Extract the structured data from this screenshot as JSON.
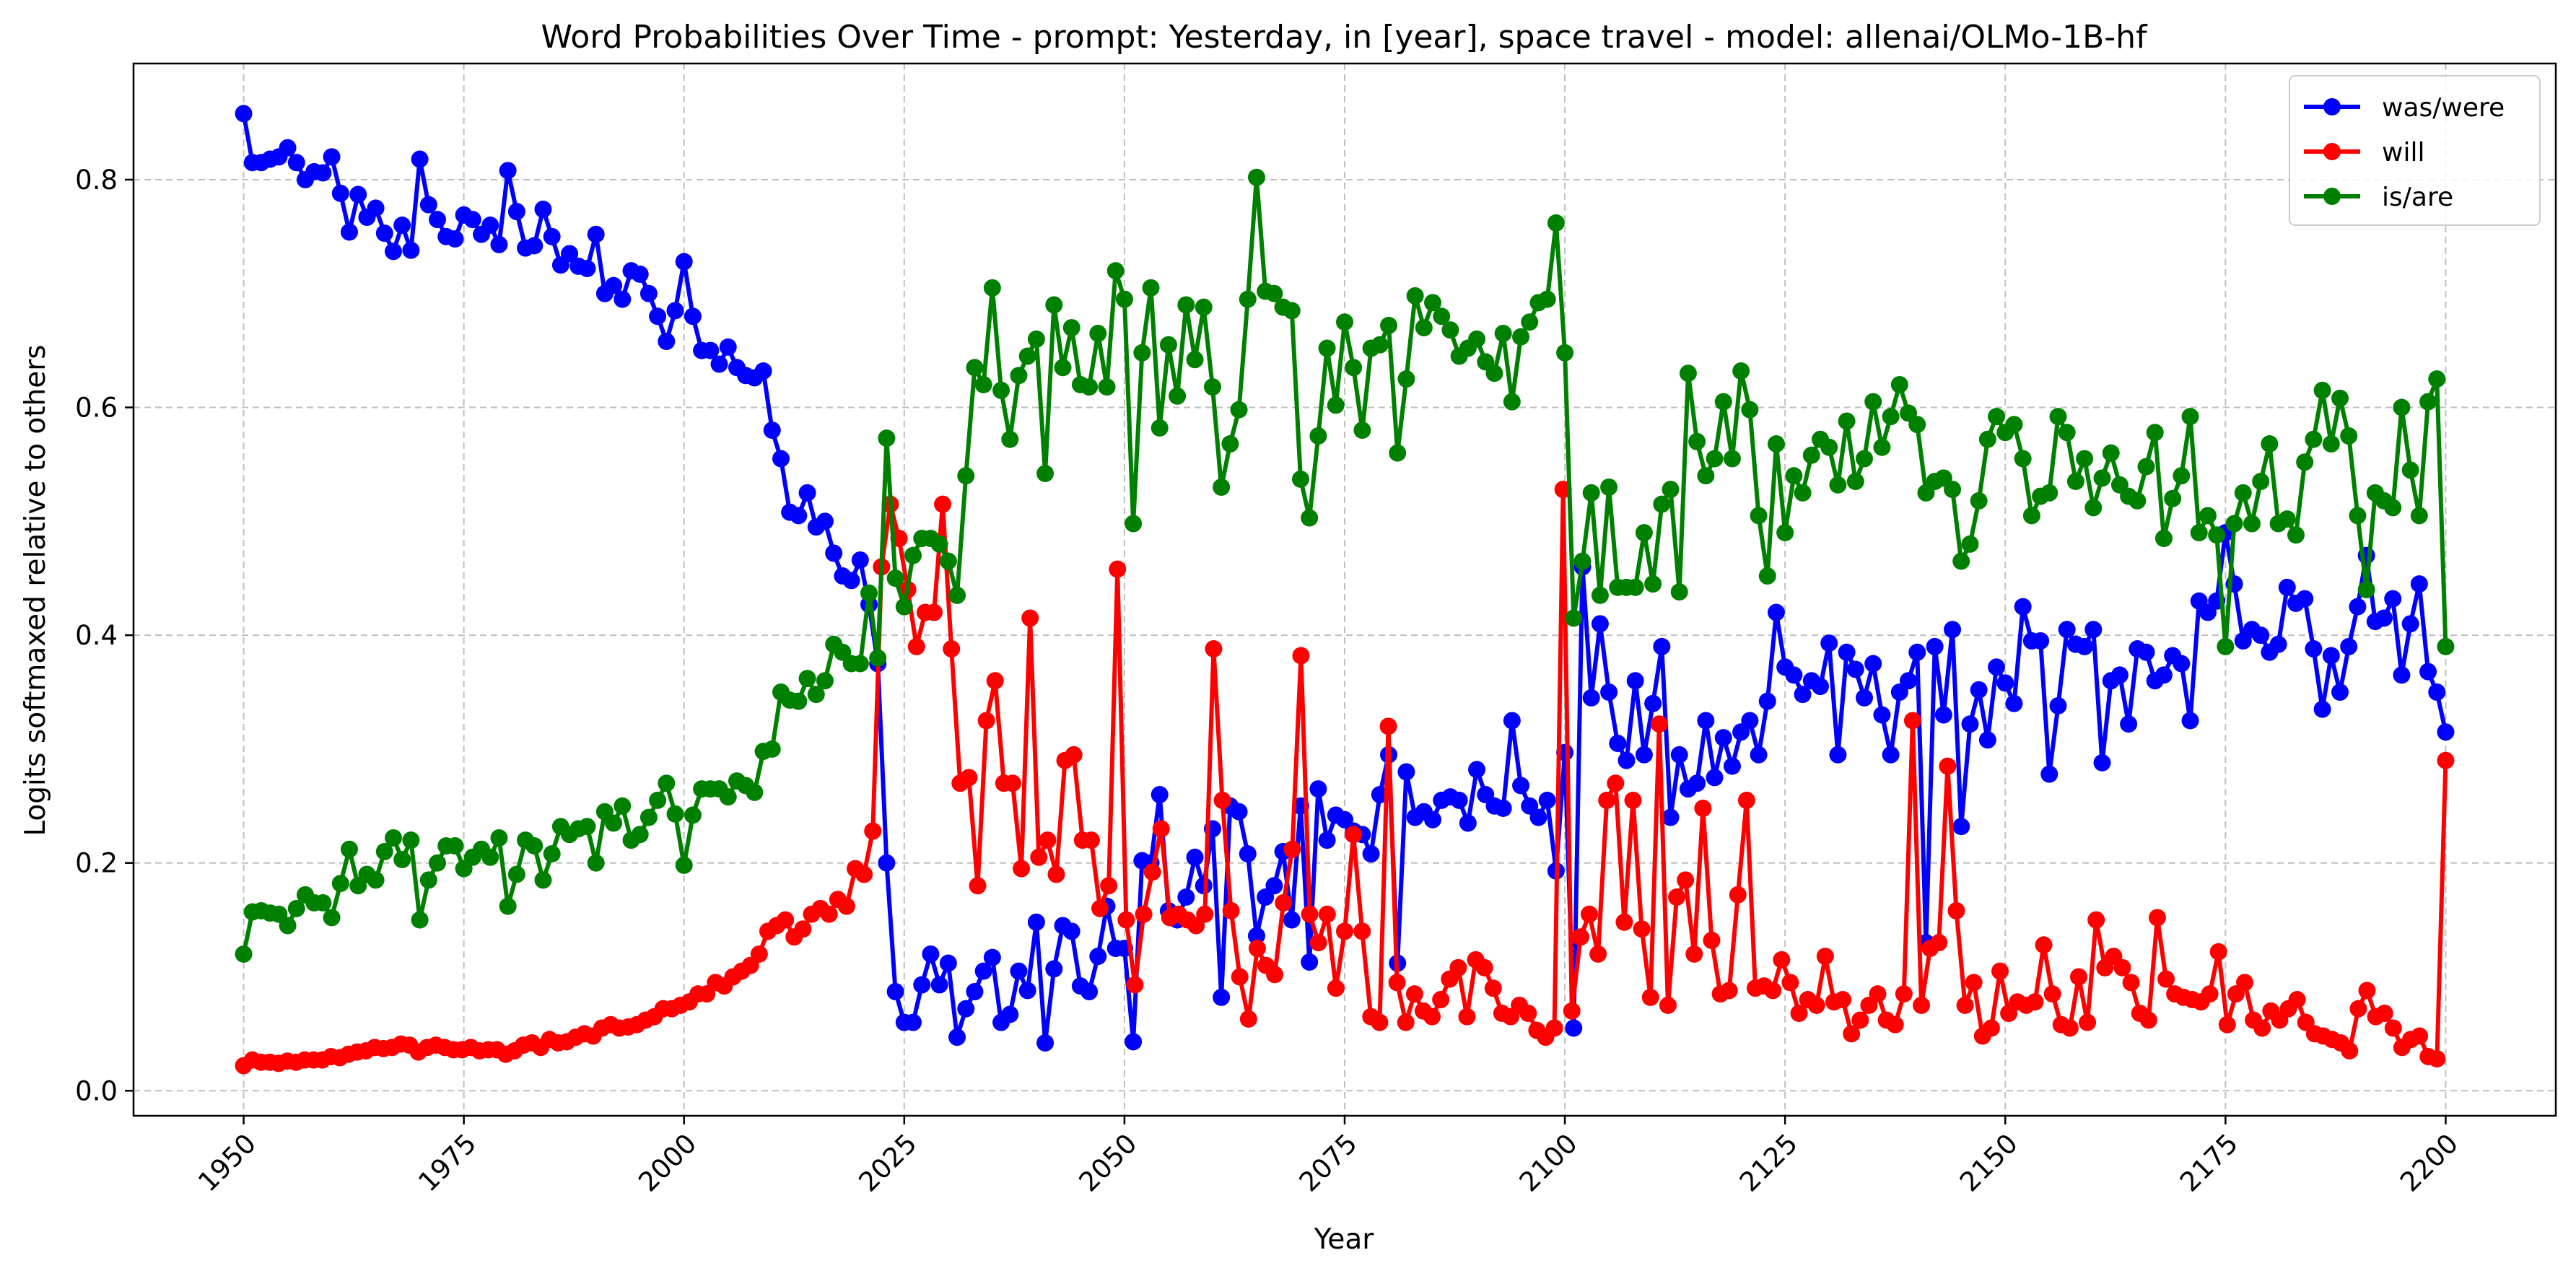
{
  "chart_data": {
    "type": "line",
    "title": "Word Probabilities Over Time - prompt: Yesterday, in [year], space travel - model: allenai/OLMo-1B-hf",
    "xlabel": "Year",
    "ylabel": "Logits softmaxed relative to others",
    "xlim": [
      1937.5,
      2212.5
    ],
    "ylim": [
      -0.022,
      0.902
    ],
    "xticks": [
      1950,
      1975,
      2000,
      2025,
      2050,
      2075,
      2100,
      2125,
      2150,
      2175,
      2200
    ],
    "yticks": [
      0.0,
      0.2,
      0.4,
      0.6,
      0.8
    ],
    "ytick_labels": [
      "0.0",
      "0.2",
      "0.4",
      "0.6",
      "0.8"
    ],
    "grid": true,
    "legend_position": "top-right",
    "x_start": 1950,
    "x_end": 2200,
    "series": [
      {
        "name": "was/were",
        "color": "#0000ff",
        "values": [
          0.858,
          0.815,
          0.815,
          0.818,
          0.82,
          0.828,
          0.815,
          0.8,
          0.807,
          0.806,
          0.82,
          0.788,
          0.754,
          0.787,
          0.767,
          0.775,
          0.753,
          0.737,
          0.76,
          0.738,
          0.818,
          0.778,
          0.765,
          0.75,
          0.748,
          0.769,
          0.765,
          0.752,
          0.76,
          0.743,
          0.808,
          0.772,
          0.74,
          0.742,
          0.774,
          0.75,
          0.725,
          0.735,
          0.724,
          0.722,
          0.752,
          0.7,
          0.707,
          0.695,
          0.72,
          0.717,
          0.7,
          0.68,
          0.658,
          0.685,
          0.728,
          0.68,
          0.65,
          0.65,
          0.638,
          0.653,
          0.635,
          0.628,
          0.626,
          0.632,
          0.58,
          0.555,
          0.508,
          0.505,
          0.525,
          0.495,
          0.5,
          0.472,
          0.452,
          0.448,
          0.466,
          0.427,
          0.375,
          0.2,
          0.087,
          0.06,
          0.06,
          0.093,
          0.12,
          0.093,
          0.112,
          0.047,
          0.072,
          0.087,
          0.105,
          0.117,
          0.06,
          0.067,
          0.105,
          0.088,
          0.148,
          0.042,
          0.107,
          0.145,
          0.14,
          0.092,
          0.087,
          0.118,
          0.162,
          0.125,
          0.125,
          0.043,
          0.202,
          0.2,
          0.26,
          0.158,
          0.15,
          0.17,
          0.205,
          0.18,
          0.23,
          0.082,
          0.25,
          0.245,
          0.208,
          0.136,
          0.17,
          0.18,
          0.21,
          0.15,
          0.25,
          0.113,
          0.265,
          0.22,
          0.242,
          0.238,
          0.228,
          0.225,
          0.208,
          0.26,
          0.295,
          0.112,
          0.28,
          0.24,
          0.245,
          0.238,
          0.255,
          0.258,
          0.255,
          0.235,
          0.282,
          0.26,
          0.25,
          0.248,
          0.325,
          0.268,
          0.25,
          0.24,
          0.255,
          0.193,
          0.297,
          0.055,
          0.46,
          0.345,
          0.41,
          0.35,
          0.305,
          0.29,
          0.36,
          0.295,
          0.34,
          0.39,
          0.24,
          0.295,
          0.265,
          0.27,
          0.325,
          0.275,
          0.31,
          0.285,
          0.315,
          0.325,
          0.295,
          0.342,
          0.42,
          0.372,
          0.365,
          0.348,
          0.36,
          0.355,
          0.393,
          0.295,
          0.385,
          0.37,
          0.345,
          0.375,
          0.33,
          0.295,
          0.35,
          0.36,
          0.385,
          0.13,
          0.39,
          0.33,
          0.405,
          0.232,
          0.322,
          0.352,
          0.308,
          0.372,
          0.358,
          0.34,
          0.425,
          0.395,
          0.395,
          0.278,
          0.338,
          0.405,
          0.392,
          0.39,
          0.405,
          0.288,
          0.36,
          0.365,
          0.322,
          0.388,
          0.385,
          0.36,
          0.365,
          0.382,
          0.375,
          0.325,
          0.43,
          0.42,
          0.43,
          0.49,
          0.445,
          0.395,
          0.405,
          0.4,
          0.385,
          0.392,
          0.442,
          0.428,
          0.432,
          0.388,
          0.335,
          0.382,
          0.35,
          0.39,
          0.425,
          0.47,
          0.412,
          0.415,
          0.432,
          0.365,
          0.41,
          0.445,
          0.368,
          0.35,
          0.315
        ]
      },
      {
        "name": "will",
        "color": "#ff0000",
        "values": [
          0.022,
          0.027,
          0.025,
          0.025,
          0.024,
          0.026,
          0.025,
          0.027,
          0.027,
          0.027,
          0.03,
          0.029,
          0.032,
          0.034,
          0.035,
          0.038,
          0.037,
          0.038,
          0.041,
          0.04,
          0.034,
          0.038,
          0.04,
          0.038,
          0.036,
          0.036,
          0.038,
          0.035,
          0.036,
          0.036,
          0.032,
          0.035,
          0.04,
          0.042,
          0.038,
          0.045,
          0.042,
          0.043,
          0.047,
          0.05,
          0.048,
          0.055,
          0.058,
          0.055,
          0.056,
          0.058,
          0.062,
          0.065,
          0.072,
          0.072,
          0.075,
          0.078,
          0.085,
          0.085,
          0.095,
          0.092,
          0.1,
          0.105,
          0.11,
          0.12,
          0.14,
          0.145,
          0.15,
          0.135,
          0.142,
          0.155,
          0.16,
          0.155,
          0.168,
          0.162,
          0.195,
          0.19,
          0.228,
          0.46,
          0.515,
          0.485,
          0.44,
          0.39,
          0.42,
          0.42,
          0.515,
          0.388,
          0.27,
          0.275,
          0.18,
          0.325,
          0.36,
          0.27,
          0.27,
          0.195,
          0.415,
          0.205,
          0.22,
          0.19,
          0.29,
          0.295,
          0.22,
          0.22,
          0.16,
          0.18,
          0.458,
          0.15,
          0.093,
          0.155,
          0.192,
          0.23,
          0.152,
          0.155,
          0.15,
          0.145,
          0.155,
          0.388,
          0.255,
          0.158,
          0.1,
          0.063,
          0.125,
          0.11,
          0.102,
          0.165,
          0.212,
          0.382,
          0.155,
          0.13,
          0.155,
          0.09,
          0.14,
          0.225,
          0.14,
          0.065,
          0.06,
          0.32,
          0.095,
          0.06,
          0.085,
          0.07,
          0.065,
          0.08,
          0.098,
          0.108,
          0.065,
          0.115,
          0.108,
          0.09,
          0.068,
          0.065,
          0.075,
          0.068,
          0.053,
          0.047,
          0.055,
          0.528,
          0.07,
          0.135,
          0.155,
          0.12,
          0.255,
          0.27,
          0.148,
          0.255,
          0.142,
          0.082,
          0.322,
          0.075,
          0.17,
          0.185,
          0.12,
          0.248,
          0.132,
          0.085,
          0.088,
          0.172,
          0.255,
          0.09,
          0.092,
          0.088,
          0.115,
          0.095,
          0.068,
          0.08,
          0.075,
          0.118,
          0.078,
          0.08,
          0.05,
          0.062,
          0.075,
          0.085,
          0.062,
          0.058,
          0.085,
          0.325,
          0.075,
          0.125,
          0.13,
          0.285,
          0.158,
          0.075,
          0.095,
          0.048,
          0.055,
          0.105,
          0.068,
          0.078,
          0.075,
          0.078,
          0.128,
          0.085,
          0.058,
          0.055,
          0.1,
          0.06,
          0.15,
          0.108,
          0.118,
          0.108,
          0.095,
          0.068,
          0.062,
          0.152,
          0.098,
          0.085,
          0.082,
          0.08,
          0.078,
          0.085,
          0.122,
          0.058,
          0.085,
          0.095,
          0.062,
          0.055,
          0.07,
          0.062,
          0.072,
          0.08,
          0.06,
          0.05,
          0.048,
          0.045,
          0.042,
          0.035,
          0.072,
          0.088,
          0.065,
          0.068,
          0.055,
          0.038,
          0.045,
          0.048,
          0.03,
          0.028,
          0.29
        ]
      },
      {
        "name": "is/are",
        "color": "#008000",
        "values": [
          0.12,
          0.157,
          0.158,
          0.156,
          0.155,
          0.145,
          0.16,
          0.172,
          0.165,
          0.165,
          0.152,
          0.182,
          0.212,
          0.18,
          0.19,
          0.185,
          0.21,
          0.222,
          0.203,
          0.22,
          0.15,
          0.185,
          0.2,
          0.215,
          0.215,
          0.195,
          0.205,
          0.212,
          0.205,
          0.222,
          0.162,
          0.19,
          0.22,
          0.215,
          0.185,
          0.208,
          0.232,
          0.225,
          0.23,
          0.232,
          0.2,
          0.245,
          0.235,
          0.25,
          0.22,
          0.225,
          0.24,
          0.255,
          0.27,
          0.243,
          0.198,
          0.242,
          0.265,
          0.265,
          0.265,
          0.258,
          0.272,
          0.268,
          0.262,
          0.298,
          0.3,
          0.35,
          0.343,
          0.342,
          0.362,
          0.348,
          0.36,
          0.392,
          0.385,
          0.375,
          0.375,
          0.437,
          0.38,
          0.573,
          0.45,
          0.425,
          0.47,
          0.485,
          0.485,
          0.48,
          0.465,
          0.435,
          0.54,
          0.635,
          0.62,
          0.705,
          0.615,
          0.572,
          0.628,
          0.645,
          0.66,
          0.542,
          0.69,
          0.635,
          0.67,
          0.62,
          0.618,
          0.665,
          0.618,
          0.72,
          0.695,
          0.498,
          0.648,
          0.705,
          0.582,
          0.655,
          0.61,
          0.69,
          0.642,
          0.688,
          0.618,
          0.53,
          0.568,
          0.598,
          0.695,
          0.802,
          0.702,
          0.7,
          0.688,
          0.685,
          0.537,
          0.503,
          0.575,
          0.652,
          0.602,
          0.675,
          0.635,
          0.58,
          0.652,
          0.655,
          0.672,
          0.56,
          0.625,
          0.698,
          0.67,
          0.692,
          0.68,
          0.668,
          0.645,
          0.652,
          0.66,
          0.64,
          0.63,
          0.665,
          0.605,
          0.662,
          0.675,
          0.692,
          0.695,
          0.762,
          0.648,
          0.415,
          0.465,
          0.525,
          0.435,
          0.53,
          0.442,
          0.442,
          0.442,
          0.49,
          0.445,
          0.515,
          0.528,
          0.438,
          0.63,
          0.57,
          0.54,
          0.555,
          0.605,
          0.555,
          0.632,
          0.598,
          0.505,
          0.452,
          0.568,
          0.49,
          0.54,
          0.525,
          0.558,
          0.572,
          0.565,
          0.532,
          0.588,
          0.535,
          0.555,
          0.605,
          0.565,
          0.592,
          0.62,
          0.595,
          0.585,
          0.525,
          0.535,
          0.538,
          0.528,
          0.465,
          0.48,
          0.518,
          0.572,
          0.592,
          0.578,
          0.585,
          0.555,
          0.505,
          0.522,
          0.525,
          0.592,
          0.578,
          0.535,
          0.555,
          0.512,
          0.538,
          0.56,
          0.532,
          0.522,
          0.518,
          0.548,
          0.578,
          0.485,
          0.52,
          0.54,
          0.592,
          0.49,
          0.505,
          0.488,
          0.39,
          0.498,
          0.525,
          0.498,
          0.535,
          0.568,
          0.498,
          0.502,
          0.488,
          0.552,
          0.572,
          0.615,
          0.568,
          0.608,
          0.575,
          0.505,
          0.44,
          0.525,
          0.518,
          0.512,
          0.6,
          0.545,
          0.505,
          0.605,
          0.625,
          0.39
        ]
      }
    ]
  }
}
